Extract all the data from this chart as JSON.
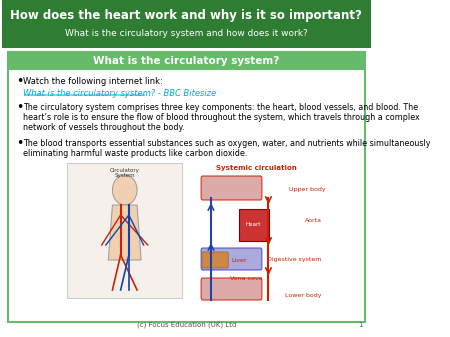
{
  "title_text": "How does the heart work and why is it so important?",
  "subtitle_text": "What is the circulatory system and how does it work?",
  "section_header": "What is the circulatory system?",
  "dark_green": "#2e7d32",
  "light_green": "#66bb6a",
  "bg_color": "#ffffff",
  "bullet1": "Watch the following internet link:",
  "link_text": "What is the circulatory system? - BBC Bitesize",
  "link_color": "#00aadd",
  "bullet2_line1": "The circulatory system comprises three key components: the heart, blood vessels, and blood. The",
  "bullet2_line2": "heart’s role is to ensure the flow of blood throughout the system, which travels through a complex",
  "bullet2_line3": "network of vessels throughout the body.",
  "bullet3_line1": "The blood transports essential substances such as oxygen, water, and nutrients while simultaneously",
  "bullet3_line2": "eliminating harmful waste products like carbon dioxide.",
  "footer_text": "(c) Focus Education (UK) Ltd",
  "page_num": "1"
}
